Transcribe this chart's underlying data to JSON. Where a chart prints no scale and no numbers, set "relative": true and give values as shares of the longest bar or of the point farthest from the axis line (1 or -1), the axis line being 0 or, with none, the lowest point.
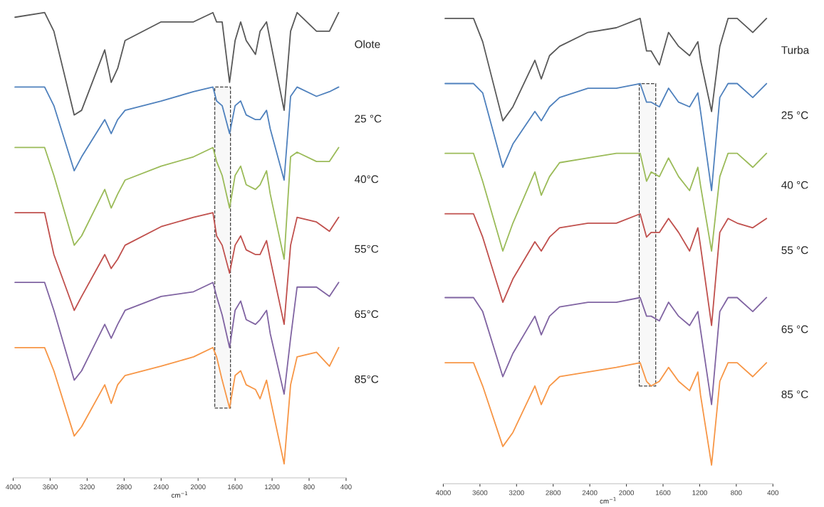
{
  "chart_data": [
    {
      "type": "line",
      "relative": true,
      "xlabel": "cm$^{−1}$",
      "xlim": [
        4000,
        400
      ],
      "xticks": [
        4000,
        3600,
        3200,
        2800,
        2400,
        2000,
        1600,
        1200,
        800,
        400
      ],
      "tick_labels": "x",
      "x": [
        3980,
        3660,
        3560,
        3340,
        3260,
        3010,
        2940,
        2870,
        2790,
        2400,
        2050,
        1840,
        1800,
        1740,
        1660,
        1600,
        1540,
        1480,
        1380,
        1330,
        1260,
        1220,
        1070,
        1000,
        930,
        720,
        580,
        480
      ],
      "bands": [
        {
          "axis": "x",
          "from": 1820,
          "to": 1650
        }
      ],
      "series": [
        {
          "name": "Olote",
          "color": "#595959",
          "values": [
            0.99,
            1.0,
            0.96,
            0.78,
            0.79,
            0.92,
            0.85,
            0.88,
            0.94,
            0.98,
            0.98,
            1.0,
            0.98,
            0.98,
            0.85,
            0.94,
            0.98,
            0.94,
            0.91,
            0.96,
            0.98,
            0.94,
            0.79,
            0.96,
            1.0,
            0.96,
            0.96,
            1.0
          ]
        },
        {
          "name": "25 °C",
          "color": "#4f81bd",
          "values": [
            0.84,
            0.84,
            0.8,
            0.66,
            0.69,
            0.77,
            0.74,
            0.77,
            0.79,
            0.81,
            0.83,
            0.84,
            0.81,
            0.8,
            0.74,
            0.8,
            0.81,
            0.78,
            0.77,
            0.77,
            0.79,
            0.75,
            0.64,
            0.82,
            0.84,
            0.82,
            0.83,
            0.84
          ]
        },
        {
          "name": "40°C",
          "color": "#9bbb59",
          "values": [
            0.71,
            0.71,
            0.65,
            0.5,
            0.52,
            0.62,
            0.58,
            0.61,
            0.64,
            0.67,
            0.69,
            0.71,
            0.68,
            0.65,
            0.58,
            0.65,
            0.67,
            0.63,
            0.62,
            0.63,
            0.66,
            0.61,
            0.47,
            0.69,
            0.7,
            0.68,
            0.68,
            0.71
          ]
        },
        {
          "name": "55°C",
          "color": "#c0504d",
          "values": [
            0.57,
            0.57,
            0.48,
            0.36,
            0.39,
            0.48,
            0.45,
            0.47,
            0.5,
            0.54,
            0.56,
            0.57,
            0.52,
            0.5,
            0.44,
            0.5,
            0.52,
            0.49,
            0.48,
            0.48,
            0.51,
            0.47,
            0.33,
            0.5,
            0.56,
            0.55,
            0.53,
            0.56
          ]
        },
        {
          "name": "65°C",
          "color": "#8064a2",
          "values": [
            0.42,
            0.42,
            0.36,
            0.21,
            0.23,
            0.33,
            0.3,
            0.33,
            0.36,
            0.39,
            0.4,
            0.42,
            0.39,
            0.35,
            0.28,
            0.36,
            0.38,
            0.34,
            0.33,
            0.34,
            0.36,
            0.31,
            0.18,
            0.3,
            0.41,
            0.41,
            0.39,
            0.42
          ]
        },
        {
          "name": "85°C",
          "color": "#f79646",
          "values": [
            0.28,
            0.28,
            0.23,
            0.09,
            0.11,
            0.2,
            0.16,
            0.2,
            0.22,
            0.24,
            0.26,
            0.28,
            0.26,
            0.21,
            0.15,
            0.22,
            0.23,
            0.2,
            0.19,
            0.17,
            0.21,
            0.17,
            0.03,
            0.2,
            0.26,
            0.27,
            0.24,
            0.28
          ]
        }
      ]
    },
    {
      "type": "line",
      "relative": true,
      "xlabel": "cm$^{−1}$",
      "xlim": [
        4000,
        400
      ],
      "xticks": [
        4000,
        3600,
        3200,
        2800,
        2400,
        2000,
        1600,
        1200,
        800,
        400
      ],
      "tick_labels": "x",
      "x": [
        3980,
        3670,
        3570,
        3350,
        3240,
        3000,
        2930,
        2840,
        2730,
        2420,
        2110,
        1850,
        1780,
        1730,
        1640,
        1540,
        1430,
        1310,
        1220,
        1190,
        1070,
        980,
        890,
        790,
        620,
        470
      ],
      "bands": [
        {
          "axis": "x",
          "from": 1860,
          "to": 1680
        }
      ],
      "series": [
        {
          "name": "Turba",
          "color": "#595959",
          "values": [
            1.0,
            1.0,
            0.95,
            0.78,
            0.81,
            0.91,
            0.87,
            0.92,
            0.94,
            0.97,
            0.98,
            1.0,
            0.93,
            0.93,
            0.9,
            0.97,
            0.94,
            0.92,
            0.95,
            0.91,
            0.8,
            0.94,
            1.0,
            1.0,
            0.97,
            1.0
          ]
        },
        {
          "name": "25 °C",
          "color": "#4f81bd",
          "values": [
            0.86,
            0.86,
            0.84,
            0.68,
            0.73,
            0.8,
            0.78,
            0.81,
            0.83,
            0.85,
            0.85,
            0.86,
            0.82,
            0.82,
            0.81,
            0.85,
            0.82,
            0.81,
            0.84,
            0.8,
            0.63,
            0.83,
            0.86,
            0.86,
            0.83,
            0.86
          ]
        },
        {
          "name": "40 °C",
          "color": "#9bbb59",
          "values": [
            0.71,
            0.71,
            0.65,
            0.5,
            0.56,
            0.67,
            0.62,
            0.66,
            0.69,
            0.7,
            0.71,
            0.71,
            0.65,
            0.67,
            0.66,
            0.7,
            0.66,
            0.63,
            0.68,
            0.64,
            0.5,
            0.66,
            0.71,
            0.71,
            0.68,
            0.71
          ]
        },
        {
          "name": "55 °C",
          "color": "#c0504d",
          "values": [
            0.58,
            0.58,
            0.53,
            0.39,
            0.44,
            0.52,
            0.5,
            0.53,
            0.55,
            0.56,
            0.56,
            0.58,
            0.53,
            0.54,
            0.54,
            0.57,
            0.54,
            0.5,
            0.55,
            0.51,
            0.34,
            0.54,
            0.57,
            0.56,
            0.55,
            0.57
          ]
        },
        {
          "name": "65 °C",
          "color": "#8064a2",
          "values": [
            0.4,
            0.4,
            0.37,
            0.23,
            0.28,
            0.36,
            0.32,
            0.36,
            0.38,
            0.39,
            0.39,
            0.4,
            0.36,
            0.36,
            0.35,
            0.39,
            0.36,
            0.34,
            0.37,
            0.33,
            0.17,
            0.37,
            0.4,
            0.4,
            0.37,
            0.4
          ]
        },
        {
          "name": "85 °C",
          "color": "#f79646",
          "values": [
            0.26,
            0.26,
            0.21,
            0.08,
            0.11,
            0.21,
            0.17,
            0.21,
            0.23,
            0.24,
            0.25,
            0.26,
            0.22,
            0.21,
            0.22,
            0.25,
            0.22,
            0.2,
            0.24,
            0.19,
            0.04,
            0.22,
            0.26,
            0.26,
            0.23,
            0.26
          ]
        }
      ]
    }
  ]
}
